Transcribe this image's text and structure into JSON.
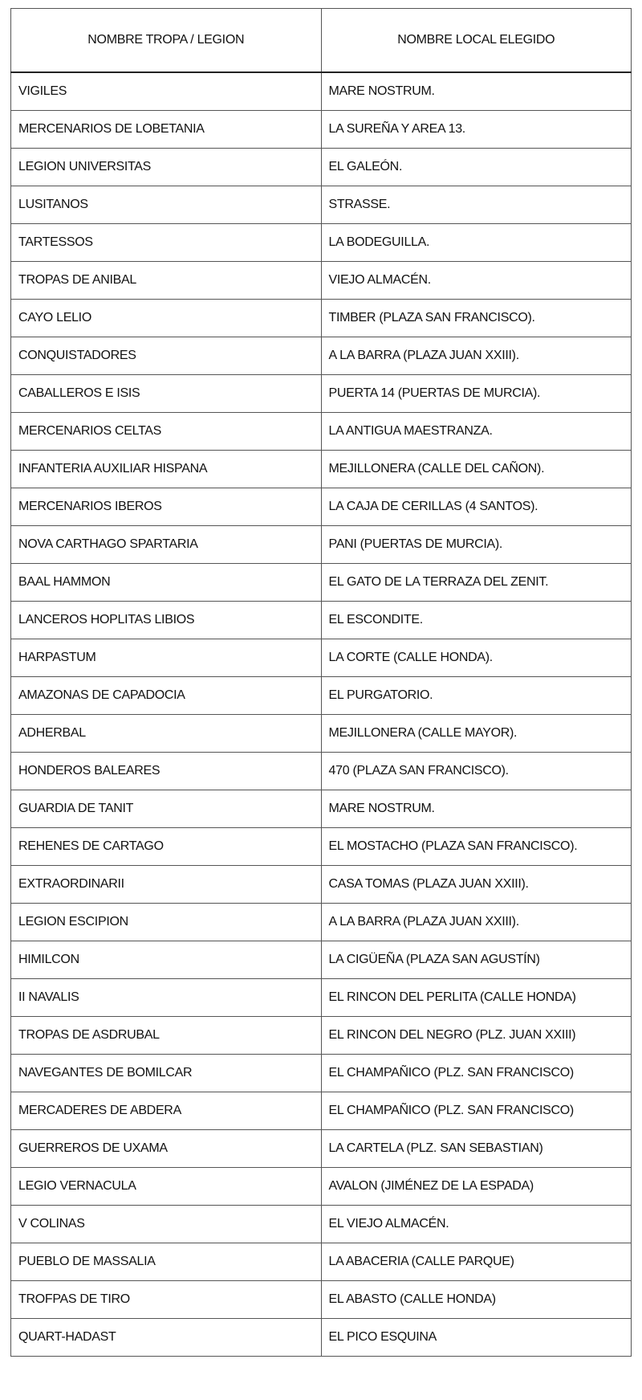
{
  "headers": [
    "NOMBRE TROPA / LEGION",
    "NOMBRE LOCAL ELEGIDO"
  ],
  "rows": [
    [
      "VIGILES",
      "MARE NOSTRUM."
    ],
    [
      "MERCENARIOS DE LOBETANIA",
      "LA SUREÑA Y AREA 13."
    ],
    [
      "LEGION UNIVERSITAS",
      "EL GALEÓN."
    ],
    [
      "LUSITANOS",
      "STRASSE."
    ],
    [
      "TARTESSOS",
      "LA BODEGUILLA."
    ],
    [
      "TROPAS DE ANIBAL",
      "VIEJO ALMACÉN."
    ],
    [
      "CAYO LELIO",
      "TIMBER (PLAZA SAN FRANCISCO)."
    ],
    [
      "CONQUISTADORES",
      "A LA BARRA (PLAZA JUAN XXIII)."
    ],
    [
      "CABALLEROS E ISIS",
      "PUERTA 14 (PUERTAS DE MURCIA)."
    ],
    [
      "MERCENARIOS CELTAS",
      "LA ANTIGUA MAESTRANZA."
    ],
    [
      "INFANTERIA AUXILIAR HISPANA",
      "MEJILLONERA (CALLE DEL CAÑON)."
    ],
    [
      "MERCENARIOS IBEROS",
      "LA CAJA DE CERILLAS (4 SANTOS)."
    ],
    [
      "NOVA CARTHAGO SPARTARIA",
      "PANI (PUERTAS DE MURCIA)."
    ],
    [
      "BAAL HAMMON",
      "EL GATO DE LA TERRAZA DEL ZENIT."
    ],
    [
      "LANCEROS HOPLITAS LIBIOS",
      "EL ESCONDITE."
    ],
    [
      "HARPASTUM",
      "LA CORTE (CALLE HONDA)."
    ],
    [
      "AMAZONAS DE CAPADOCIA",
      "EL PURGATORIO."
    ],
    [
      "ADHERBAL",
      "MEJILLONERA (CALLE MAYOR)."
    ],
    [
      "HONDEROS BALEARES",
      "470 (PLAZA SAN FRANCISCO)."
    ],
    [
      "GUARDIA DE TANIT",
      "MARE NOSTRUM."
    ],
    [
      "REHENES DE CARTAGO",
      "EL MOSTACHO (PLAZA SAN FRANCISCO)."
    ],
    [
      "EXTRAORDINARII",
      "CASA TOMAS (PLAZA JUAN XXIII)."
    ],
    [
      "LEGION ESCIPION",
      "A LA BARRA (PLAZA JUAN XXIII)."
    ],
    [
      "HIMILCON",
      "LA CIGÜEÑA (PLAZA SAN AGUSTÍN)"
    ],
    [
      "II NAVALIS",
      "EL RINCON DEL PERLITA (CALLE HONDA)"
    ],
    [
      "TROPAS DE ASDRUBAL",
      "EL RINCON DEL NEGRO (PLZ. JUAN XXIII)"
    ],
    [
      "NAVEGANTES DE BOMILCAR",
      "EL CHAMPAÑICO (PLZ. SAN FRANCISCO)"
    ],
    [
      "MERCADERES DE ABDERA",
      "EL CHAMPAÑICO (PLZ. SAN FRANCISCO)"
    ],
    [
      "GUERREROS DE UXAMA",
      "LA CARTELA (PLZ. SAN SEBASTIAN)"
    ],
    [
      "LEGIO VERNACULA",
      "AVALON (JIMÉNEZ DE LA ESPADA)"
    ],
    [
      "V COLINAS",
      "EL VIEJO ALMACÉN."
    ],
    [
      "PUEBLO DE MASSALIA",
      "LA ABACERIA (CALLE PARQUE)"
    ],
    [
      "TROFPAS DE TIRO",
      "EL ABASTO (CALLE HONDA)"
    ],
    [
      "QUART-HADAST",
      "EL PICO ESQUINA"
    ]
  ]
}
